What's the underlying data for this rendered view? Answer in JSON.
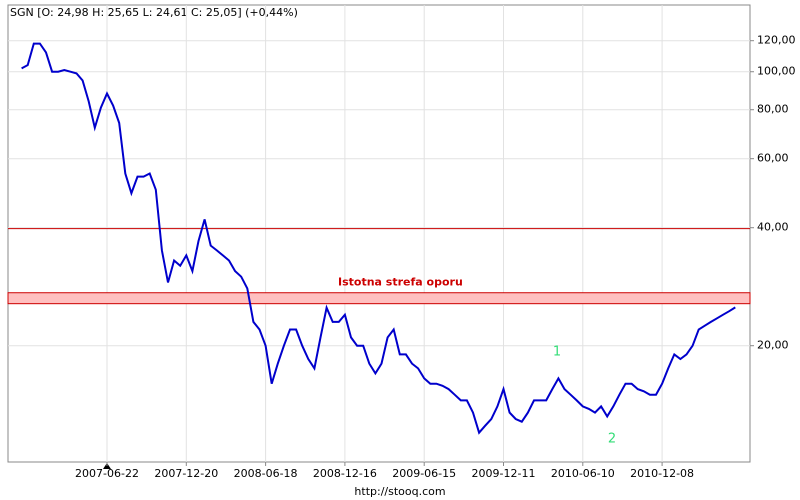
{
  "chart_data": {
    "type": "line",
    "title": "SGN [O: 24,98  H: 25,65  L: 24,61  C: 25,05] (+0,44%)",
    "footer": "http://stooq.com",
    "log_scale": true,
    "grid": true,
    "color": "#0000cc",
    "categories": [
      null,
      null,
      null,
      null,
      null,
      null,
      null,
      null,
      null,
      null,
      null,
      null,
      null,
      null,
      "2007-06-22",
      null,
      null,
      null,
      null,
      null,
      null,
      null,
      null,
      null,
      null,
      null,
      null,
      "2007-12-20",
      null,
      null,
      null,
      null,
      null,
      null,
      null,
      null,
      null,
      null,
      null,
      null,
      "2008-06-18",
      null,
      null,
      null,
      null,
      null,
      null,
      null,
      null,
      null,
      null,
      null,
      null,
      "2008-12-16",
      null,
      null,
      null,
      null,
      null,
      null,
      null,
      null,
      null,
      null,
      null,
      null,
      "2009-06-15",
      null,
      null,
      null,
      null,
      null,
      null,
      null,
      null,
      null,
      null,
      null,
      null,
      "2009-12-11",
      null,
      null,
      null,
      null,
      null,
      null,
      null,
      null,
      null,
      null,
      null,
      null,
      "2010-06-10",
      null,
      null,
      null,
      null,
      null,
      null,
      null,
      null,
      null,
      null,
      null,
      null,
      "2010-12-08",
      null,
      null,
      null,
      null,
      null,
      null,
      null,
      null,
      null,
      null,
      null,
      null
    ],
    "values": [
      102,
      104,
      118,
      118,
      112,
      100,
      100,
      101,
      100,
      99,
      95,
      84,
      72,
      81,
      88,
      82,
      74,
      55,
      49,
      54,
      54,
      55,
      50,
      35,
      29,
      33,
      32,
      34,
      31,
      37,
      42,
      36,
      35,
      34,
      33,
      31,
      30,
      28,
      23,
      22,
      20,
      16,
      18,
      20,
      22,
      22,
      20,
      18.5,
      17.5,
      21,
      25,
      23,
      23,
      24,
      21,
      20,
      20,
      18,
      17,
      18,
      21,
      22,
      19,
      19,
      18,
      17.5,
      16.5,
      16,
      16,
      15.8,
      15.5,
      15,
      14.5,
      14.5,
      13.5,
      12,
      12.5,
      13,
      14,
      15.5,
      13.5,
      13,
      12.8,
      13.5,
      14.5,
      14.5,
      14.5,
      15.5,
      16.5,
      15.5,
      15,
      14.5,
      14,
      13.8,
      13.5,
      14,
      13.2,
      14,
      15,
      16,
      16,
      15.5,
      15.3,
      15,
      15,
      16,
      17.5,
      19,
      18.5,
      19,
      20,
      22,
      22.5,
      23,
      23.5,
      24,
      24.5,
      25.05
    ],
    "ylim": [
      10.1,
      148
    ],
    "yticks": [
      {
        "value": 20,
        "label": "20,00"
      },
      {
        "value": 40,
        "label": "40,00"
      },
      {
        "value": 60,
        "label": "60,00"
      },
      {
        "value": 80,
        "label": "80,00"
      },
      {
        "value": 100,
        "label": "100,00"
      },
      {
        "value": 120,
        "label": "120,00"
      }
    ],
    "resistance_line": {
      "value": 39.8,
      "color": "#cc0000"
    },
    "resistance_zone": {
      "range": [
        25.6,
        27.3
      ],
      "color": "#ffc0c0",
      "border": "#cc0000",
      "label": "Istotna strefa oporu"
    },
    "annotations": [
      "1",
      "2"
    ],
    "annotation_color": "#33dd77"
  }
}
